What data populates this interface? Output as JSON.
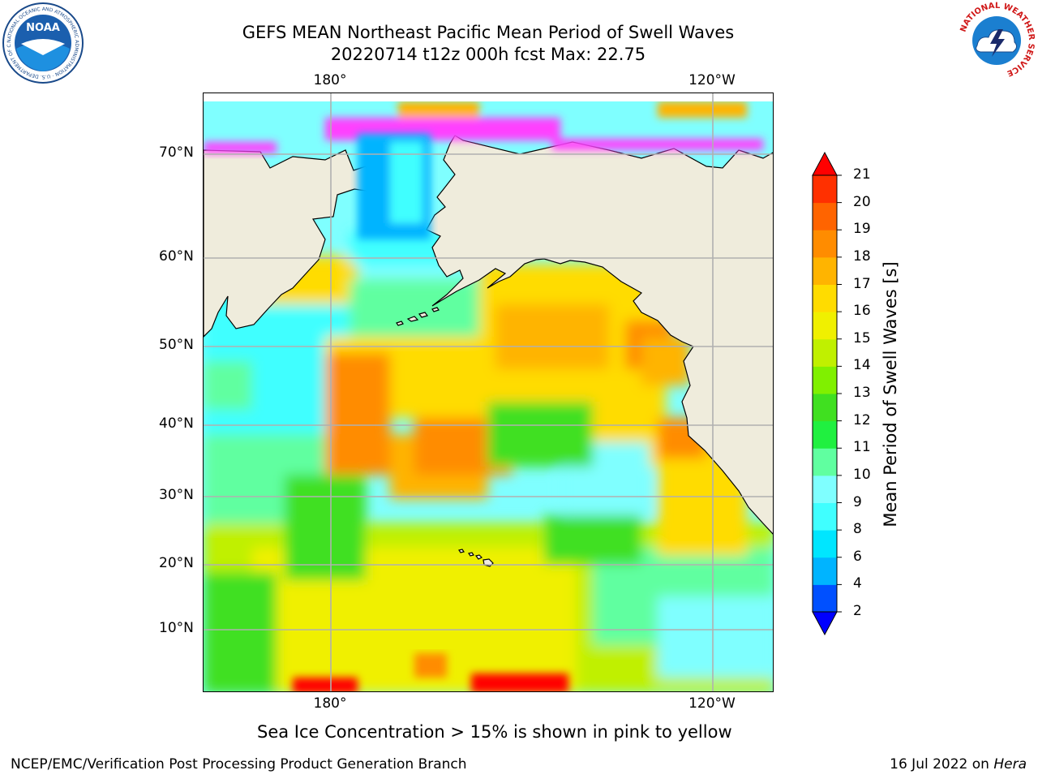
{
  "header": {
    "title_line1": "GEFS MEAN Northeast Pacific Mean Period of Swell Waves",
    "title_line2": "20220714 t12z 000h fcst   Max: 22.75"
  },
  "map": {
    "lat_labels": [
      "70°N",
      "60°N",
      "50°N",
      "40°N",
      "30°N",
      "20°N",
      "10°N"
    ],
    "lon_labels_top": [
      "180°",
      "120°W"
    ],
    "lon_labels_bottom": [
      "180°",
      "120°W"
    ],
    "colors": {
      "land": "#efecdc",
      "ocean_default": "#7fffff",
      "grid": "#b0b0b0",
      "coast": "#000000"
    }
  },
  "colorbar": {
    "title": "Mean Period of Swell Waves [s]",
    "tick_labels": [
      "2",
      "4",
      "6",
      "8",
      "9",
      "10",
      "11",
      "12",
      "13",
      "14",
      "15",
      "16",
      "17",
      "18",
      "19",
      "20",
      "21"
    ],
    "colors": [
      "#0050ff",
      "#00b4ff",
      "#00e6ff",
      "#40ffff",
      "#7fffff",
      "#60ffa0",
      "#20f040",
      "#40e020",
      "#80f000",
      "#c0f000",
      "#f0f000",
      "#ffdc00",
      "#ffb400",
      "#ff8c00",
      "#ff6400",
      "#ff3000",
      "#ff0000"
    ],
    "min_color": "#0000ff",
    "max_color": "#ff0000"
  },
  "footer": {
    "note": "Sea Ice Concentration > 15% is shown in pink to yellow",
    "left": "NCEP/EMC/Verification Post Processing Product Generation Branch",
    "right_date": "16 Jul 2022 on ",
    "right_host": "Hera"
  },
  "logos": {
    "noaa_text": "NOAA",
    "noaa_ring_text": "NATIONAL OCEANIC AND ATMOSPHERIC ADMINISTRATION · U.S. DEPARTMENT OF COMMERCE",
    "nws_ring_text": "NATIONAL WEATHER SERVICE"
  }
}
